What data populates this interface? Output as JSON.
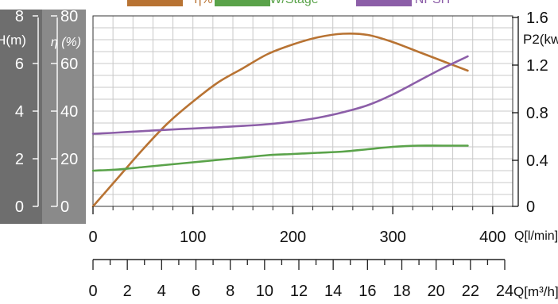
{
  "chart_data": {
    "type": "line",
    "legend": {
      "position": "top",
      "entries": [
        {
          "label": "η%",
          "color": "#b87333"
        },
        {
          "label": "kW/Stage",
          "color": "#5aa34a"
        },
        {
          "label": "NPSH",
          "color": "#8c5ea8"
        }
      ]
    },
    "axes": {
      "head": {
        "label": "H(m)",
        "ticks": [
          "8",
          "6",
          "4",
          "2",
          "0"
        ],
        "range": [
          0,
          8
        ]
      },
      "efficiency": {
        "label": "η (%)",
        "ticks": [
          "80",
          "60",
          "40",
          "20",
          "0"
        ],
        "range": [
          0,
          80
        ]
      },
      "power": {
        "label": "P2(kw",
        "ticks": [
          "1.6",
          "1.2",
          "0.8",
          "0.4",
          "0"
        ],
        "range": [
          0,
          1.6
        ]
      },
      "flow_lmin": {
        "label": "Q[l/min]",
        "ticks": [
          "0",
          "100",
          "200",
          "300",
          "400"
        ],
        "range": [
          0,
          400
        ]
      },
      "flow_m3h": {
        "label": "Q[m³/h]",
        "ticks": [
          "0",
          "2",
          "4",
          "6",
          "8",
          "10",
          "12",
          "14",
          "16",
          "18",
          "20",
          "22",
          "24"
        ],
        "range": [
          0,
          24
        ]
      }
    },
    "series": [
      {
        "name": "η%",
        "axis": "efficiency",
        "color": "#b87333",
        "x": [
          0,
          25,
          50,
          75,
          100,
          125,
          150,
          175,
          200,
          225,
          250,
          275,
          300,
          325,
          350,
          375
        ],
        "y": [
          0,
          12,
          24,
          35,
          44,
          52,
          58,
          64,
          68,
          71,
          72.5,
          72,
          69,
          65,
          61,
          57
        ]
      },
      {
        "name": "kW/Stage",
        "axis": "power",
        "color": "#5aa34a",
        "x": [
          0,
          25,
          50,
          75,
          100,
          125,
          150,
          175,
          200,
          225,
          250,
          275,
          300,
          325,
          350,
          375
        ],
        "y": [
          0.3,
          0.31,
          0.33,
          0.35,
          0.37,
          0.39,
          0.41,
          0.43,
          0.44,
          0.45,
          0.46,
          0.48,
          0.5,
          0.51,
          0.51,
          0.51
        ]
      },
      {
        "name": "NPSH",
        "axis": "efficiency",
        "color": "#8c5ea8",
        "x": [
          0,
          25,
          50,
          75,
          100,
          125,
          150,
          175,
          200,
          225,
          250,
          275,
          300,
          325,
          350,
          375
        ],
        "y": [
          30.5,
          31,
          31.6,
          32.2,
          32.7,
          33.2,
          33.8,
          34.5,
          35.6,
          37.2,
          39.5,
          42.5,
          47,
          52.5,
          58,
          63
        ]
      }
    ],
    "grid": true
  }
}
